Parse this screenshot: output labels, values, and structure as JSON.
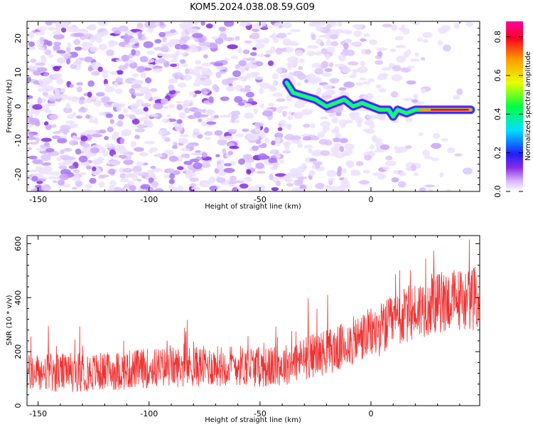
{
  "title": "KOM5.2024.038.08.59.G09",
  "colors": {
    "snr_line": "#ee3333",
    "frame": "#000000"
  },
  "chart_data": [
    {
      "type": "heatmap",
      "xlabel": "Height of straight line (km)",
      "ylabel": "Frequency (Hz)",
      "xlim": [
        -155,
        49
      ],
      "ylim": [
        -25,
        25
      ],
      "xticks": [
        -150,
        -100,
        -50,
        0
      ],
      "yticks": [
        -20,
        -10,
        0,
        10,
        20
      ],
      "colorbar": {
        "label": "Normalized spectral amplitude",
        "range": [
          0.0,
          0.88
        ],
        "ticks": [
          "0.0",
          "0.2",
          "0.4",
          "0.6",
          "0.8"
        ]
      },
      "ridge_x": [
        -38,
        -35,
        -30,
        -25,
        -20,
        -16,
        -12,
        -8,
        -4,
        0,
        4,
        8,
        10,
        12,
        16,
        20,
        24,
        30,
        40,
        45
      ],
      "ridge_y": [
        7,
        4,
        3,
        2,
        0,
        1,
        2,
        0,
        1,
        0,
        -1,
        -1,
        -3,
        -1,
        -2,
        -1,
        -1,
        -1,
        -1,
        -1
      ]
    },
    {
      "type": "line",
      "xlabel": "Height of straight line (km)",
      "ylabel": "SNR (10 * v/v)",
      "xlim": [
        -155,
        49
      ],
      "ylim": [
        0,
        630
      ],
      "xticks": [
        -150,
        -100,
        -50,
        0
      ],
      "yticks": [
        0,
        200,
        400,
        600
      ],
      "series_trend_x": [
        -155,
        -120,
        -100,
        -80,
        -60,
        -45,
        -35,
        -25,
        -15,
        -5,
        5,
        15,
        25,
        35,
        49
      ],
      "series_trend_y": [
        120,
        125,
        140,
        145,
        150,
        140,
        160,
        190,
        210,
        250,
        285,
        330,
        370,
        390,
        400
      ],
      "series_noise_amplitude": 85
    }
  ]
}
